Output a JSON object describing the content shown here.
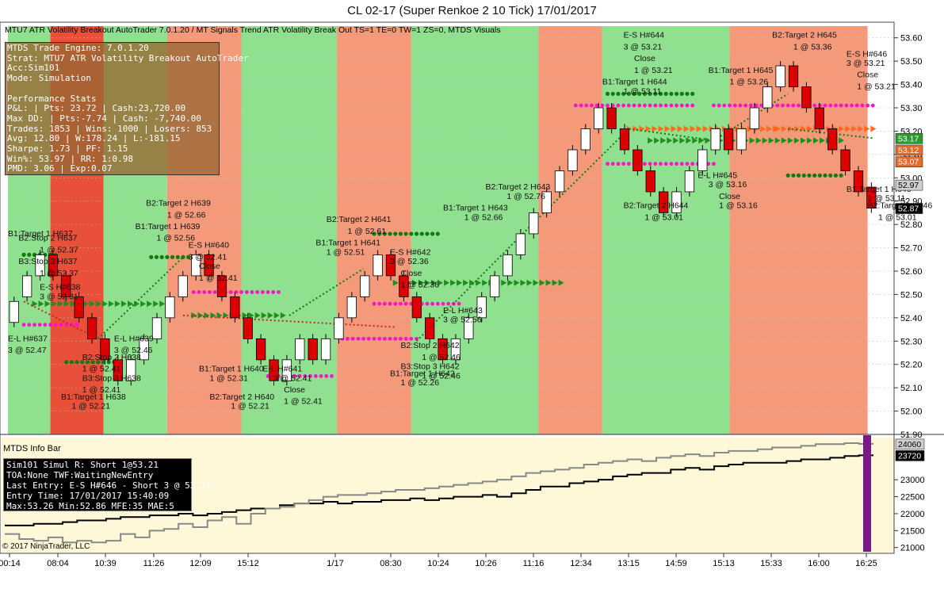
{
  "window_title": "CL 02-17 (Super Renkoe 2  10 Tick)  17/01/2017",
  "header_strip": "MTU7 ATR Volatility Breakout AutoTrader 7.0.1.20  / MT Signals Trend ATR Volatility Break Out TS=1 TE=0 TW=1 ZS=0, MTDS Visuals",
  "stats_panel": {
    "lines": [
      "MTDS Trade Engine: 7.0.1.20",
      "Strat:  MTU7 ATR Volatility Breakout AutoTrader",
      "Acc:Sim101",
      "Mode: Simulation",
      "",
      "Performance Stats",
      "P&L: | Pts: 23.72 | Cash:23,720.00",
      "Max DD: | Pts:-7.74 | Cash: -7,740.00",
      "Trades: 1853 | Wins: 1000 | Losers: 853",
      "Avg: 12.80 | W:178.24 | L:-181.15",
      "Sharpe: 1.73 | PF: 1.15",
      "Win%: 53.97 | RR: 1:0.98",
      "PMD: 3.06 | Exp:0.07"
    ]
  },
  "info_bar": {
    "title": "MTDS Info Bar",
    "lines": [
      "Sim101 Simul  R: Short 1@53.21",
      "TOA:None TWF:WaitingNewEntry",
      "Last Entry: E-S H#646 - Short 3 @ 53.21",
      "Entry Time: 17/01/2017 15:40:09",
      "Max:53.26 Min:52.86 MFE:35 MAE:5"
    ]
  },
  "copyright": "© 2017 NinjaTrader, LLC",
  "colors": {
    "long_zone": "#8fe08f",
    "short_zone": "#f49a7a",
    "strong_short_zone": "#e8503a",
    "bull_candle": "#ffffff",
    "bear_candle": "#dd0000",
    "green_dots": "#127a12",
    "magenta_dots": "#ff11cc",
    "info_bg": "#fff8d8",
    "purple_bar": "#7a1a8a"
  },
  "chart_data": [
    {
      "type": "candlestick",
      "title": "CL 02-17 (Super Renkoe 2  10 Tick)  17/01/2017",
      "ylim": [
        51.9,
        53.65
      ],
      "y_ticks": [
        "53.60",
        "53.50",
        "53.40",
        "53.30",
        "53.20",
        "53.10",
        "53.00",
        "52.90",
        "52.80",
        "52.70",
        "52.60",
        "52.50",
        "52.40",
        "52.30",
        "52.20",
        "52.10",
        "52.00",
        "51.90"
      ],
      "x_tick_labels": [
        "00:14",
        "08:04",
        "10:39",
        "11:26",
        "12:09",
        "15:12",
        "1/17",
        "08:30",
        "10:24",
        "10:26",
        "11:16",
        "12:34",
        "13:15",
        "14:59",
        "15:13",
        "15:33",
        "16:00",
        "16:25"
      ],
      "price_labels": [
        {
          "text": "53.17",
          "color": "#2e9a2e"
        },
        {
          "text": "53.12",
          "color": "#e86a2a"
        },
        {
          "text": "53.07",
          "color": "#e86a2a"
        },
        {
          "text": "52.97",
          "color": "#cfcfcf"
        },
        {
          "text": "52.87",
          "color": "#000000"
        }
      ],
      "zones": [
        {
          "from": 0,
          "to": 4,
          "kind": "long"
        },
        {
          "from": 4,
          "to": 9,
          "kind": "strong_short"
        },
        {
          "from": 9,
          "to": 15,
          "kind": "long"
        },
        {
          "from": 15,
          "to": 22,
          "kind": "short"
        },
        {
          "from": 22,
          "to": 31,
          "kind": "long"
        },
        {
          "from": 31,
          "to": 38,
          "kind": "short"
        },
        {
          "from": 38,
          "to": 50,
          "kind": "long"
        },
        {
          "from": 50,
          "to": 56,
          "kind": "short"
        },
        {
          "from": 56,
          "to": 68,
          "kind": "long"
        },
        {
          "from": 68,
          "to": 81,
          "kind": "short"
        }
      ],
      "candles_close": [
        52.47,
        52.58,
        52.67,
        52.58,
        52.49,
        52.4,
        52.31,
        52.22,
        52.13,
        52.22,
        52.31,
        52.4,
        52.49,
        52.58,
        52.67,
        52.58,
        52.49,
        52.4,
        52.31,
        52.22,
        52.13,
        52.22,
        52.31,
        52.22,
        52.31,
        52.4,
        52.49,
        52.58,
        52.67,
        52.58,
        52.49,
        52.4,
        52.31,
        52.22,
        52.31,
        52.4,
        52.49,
        52.58,
        52.67,
        52.76,
        52.85,
        52.94,
        53.03,
        53.12,
        53.21,
        53.3,
        53.21,
        53.12,
        53.03,
        52.94,
        52.85,
        52.94,
        53.03,
        53.12,
        53.21,
        53.12,
        53.21,
        53.3,
        53.39,
        53.48,
        53.39,
        53.3,
        53.21,
        53.12,
        53.03,
        52.94,
        52.87
      ],
      "candles_open": [
        52.38,
        52.49,
        52.58,
        52.67,
        52.58,
        52.49,
        52.4,
        52.31,
        52.22,
        52.13,
        52.22,
        52.31,
        52.4,
        52.49,
        52.58,
        52.67,
        52.58,
        52.49,
        52.4,
        52.31,
        52.22,
        52.13,
        52.22,
        52.31,
        52.22,
        52.31,
        52.4,
        52.49,
        52.58,
        52.67,
        52.58,
        52.49,
        52.4,
        52.31,
        52.22,
        52.31,
        52.4,
        52.49,
        52.58,
        52.67,
        52.76,
        52.85,
        52.94,
        53.03,
        53.12,
        53.21,
        53.3,
        53.21,
        53.12,
        53.03,
        52.94,
        52.85,
        52.94,
        53.03,
        53.12,
        53.21,
        53.12,
        53.21,
        53.3,
        53.39,
        53.48,
        53.39,
        53.3,
        53.21,
        53.12,
        53.03,
        52.96
      ],
      "green_dot_levels": [
        {
          "from": 1,
          "to": 4,
          "y": 52.67
        },
        {
          "from": 5,
          "to": 10,
          "y": 52.21
        },
        {
          "from": 13,
          "to": 17,
          "y": 52.66
        },
        {
          "from": 34,
          "to": 40,
          "y": 52.76
        },
        {
          "from": 56,
          "to": 64,
          "y": 53.36
        },
        {
          "from": 73,
          "to": 78,
          "y": 53.01
        }
      ],
      "magenta_dot_levels": [
        {
          "from": 1,
          "to": 6,
          "y": 52.37
        },
        {
          "from": 17,
          "to": 25,
          "y": 52.51
        },
        {
          "from": 24,
          "to": 30,
          "y": 52.15
        },
        {
          "from": 31,
          "to": 38,
          "y": 52.31
        },
        {
          "from": 34,
          "to": 42,
          "y": 52.46
        },
        {
          "from": 53,
          "to": 64,
          "y": 53.31
        },
        {
          "from": 56,
          "to": 66,
          "y": 53.06
        },
        {
          "from": 66,
          "to": 81,
          "y": 53.31
        }
      ],
      "green_arrow_levels": [
        {
          "from": 2,
          "to": 14,
          "y": 52.46
        },
        {
          "from": 17,
          "to": 26,
          "y": 52.41
        },
        {
          "from": 36,
          "to": 52,
          "y": 52.55
        },
        {
          "from": 60,
          "to": 78,
          "y": 53.16
        }
      ],
      "orange_arrow_levels": [
        {
          "from": 58,
          "to": 72,
          "y": 53.21
        },
        {
          "from": 72,
          "to": 81,
          "y": 53.21
        }
      ],
      "annotations": [
        {
          "text": "B1:Target 1 H637",
          "x": 0,
          "y": 52.75
        },
        {
          "text": "B2:Stop 2 H637",
          "x": 1,
          "y": 52.73
        },
        {
          "text": "1 @ 52.37",
          "x": 3,
          "y": 52.68
        },
        {
          "text": "B3:Stop 3 H637",
          "x": 1,
          "y": 52.63
        },
        {
          "text": "1 @ 52.37",
          "x": 3,
          "y": 52.58
        },
        {
          "text": "E-S H#638",
          "x": 3,
          "y": 52.52
        },
        {
          "text": "3 @ 52.31",
          "x": 3,
          "y": 52.48
        },
        {
          "text": "E-L H#637",
          "x": 0,
          "y": 52.3
        },
        {
          "text": "3 @ 52.47",
          "x": 0,
          "y": 52.25
        },
        {
          "text": "B2:Stop 2 H638",
          "x": 7,
          "y": 52.22
        },
        {
          "text": "1 @ 52.41",
          "x": 7,
          "y": 52.17
        },
        {
          "text": "B3:Stop 3 H638",
          "x": 7,
          "y": 52.13
        },
        {
          "text": "1 @ 52.41",
          "x": 7,
          "y": 52.08
        },
        {
          "text": "B1:Target 1 H638",
          "x": 5,
          "y": 52.05
        },
        {
          "text": "1 @ 52.21",
          "x": 6,
          "y": 52.01
        },
        {
          "text": "E-L H#639",
          "x": 10,
          "y": 52.3
        },
        {
          "text": "3 @ 52.46",
          "x": 10,
          "y": 52.25
        },
        {
          "text": "B2:Target 2 H639",
          "x": 13,
          "y": 52.88
        },
        {
          "text": "1 @ 52.66",
          "x": 15,
          "y": 52.83
        },
        {
          "text": "B1:Target 1 H639",
          "x": 12,
          "y": 52.78
        },
        {
          "text": "1 @ 52.56",
          "x": 14,
          "y": 52.73
        },
        {
          "text": "E-S H#640",
          "x": 17,
          "y": 52.7
        },
        {
          "text": "3 @ 52.41",
          "x": 17,
          "y": 52.65
        },
        {
          "text": "Close",
          "x": 18,
          "y": 52.61
        },
        {
          "text": "1 @ 52.41",
          "x": 18,
          "y": 52.56
        },
        {
          "text": "B1:Target 1 H640",
          "x": 18,
          "y": 52.17
        },
        {
          "text": "1 @ 52.31",
          "x": 19,
          "y": 52.13
        },
        {
          "text": "B2:Target 2 H640",
          "x": 19,
          "y": 52.05
        },
        {
          "text": "1 @ 52.21",
          "x": 21,
          "y": 52.01
        },
        {
          "text": "E-L H#641",
          "x": 24,
          "y": 52.17
        },
        {
          "text": "3 @ 52.41",
          "x": 25,
          "y": 52.13
        },
        {
          "text": "Close",
          "x": 26,
          "y": 52.08
        },
        {
          "text": "1 @ 52.41",
          "x": 26,
          "y": 52.03
        },
        {
          "text": "B2:Target 2 H641",
          "x": 30,
          "y": 52.81
        },
        {
          "text": "1 @ 52.61",
          "x": 32,
          "y": 52.76
        },
        {
          "text": "B1:Target 1 H641",
          "x": 29,
          "y": 52.71
        },
        {
          "text": "1 @ 52.51",
          "x": 30,
          "y": 52.67
        },
        {
          "text": "E-S H#642",
          "x": 36,
          "y": 52.67
        },
        {
          "text": "3 @ 52.36",
          "x": 36,
          "y": 52.63
        },
        {
          "text": "Close",
          "x": 37,
          "y": 52.58
        },
        {
          "text": "1 @ 52.36",
          "x": 37,
          "y": 52.53
        },
        {
          "text": "B2:Stop 2 H642",
          "x": 37,
          "y": 52.27
        },
        {
          "text": "1 @ 52.46",
          "x": 39,
          "y": 52.22
        },
        {
          "text": "B3:Stop 3 H642",
          "x": 37,
          "y": 52.18
        },
        {
          "text": "1 @ 52.46",
          "x": 39,
          "y": 52.14
        },
        {
          "text": "B1:Target 1 H642",
          "x": 36,
          "y": 52.15
        },
        {
          "text": "1 @ 52.26",
          "x": 37,
          "y": 52.11
        },
        {
          "text": "E-L H#643",
          "x": 41,
          "y": 52.42
        },
        {
          "text": "3 @ 52.56",
          "x": 41,
          "y": 52.38
        },
        {
          "text": "B1:Target 1 H643",
          "x": 41,
          "y": 52.86
        },
        {
          "text": "1 @ 52.66",
          "x": 43,
          "y": 52.82
        },
        {
          "text": "B2:Target 2 H643",
          "x": 45,
          "y": 52.95
        },
        {
          "text": "1 @ 52.76",
          "x": 47,
          "y": 52.91
        },
        {
          "text": "E-S H#644",
          "x": 58,
          "y": 53.6
        },
        {
          "text": "3 @ 53.21",
          "x": 58,
          "y": 53.55
        },
        {
          "text": "Close",
          "x": 59,
          "y": 53.5
        },
        {
          "text": "1 @ 53.21",
          "x": 59,
          "y": 53.45
        },
        {
          "text": "B1:Target 1 H644",
          "x": 56,
          "y": 53.4
        },
        {
          "text": "1 @ 53.11",
          "x": 58,
          "y": 53.36
        },
        {
          "text": "B2:Target 2 H644",
          "x": 58,
          "y": 52.87
        },
        {
          "text": "1 @ 53.01",
          "x": 60,
          "y": 52.82
        },
        {
          "text": "B1:Target 1 H645",
          "x": 66,
          "y": 53.45
        },
        {
          "text": "1 @ 53.26",
          "x": 68,
          "y": 53.4
        },
        {
          "text": "E-L H#645",
          "x": 65,
          "y": 53.0
        },
        {
          "text": "3 @ 53.16",
          "x": 66,
          "y": 52.96
        },
        {
          "text": "Close",
          "x": 67,
          "y": 52.91
        },
        {
          "text": "1 @ 53.16",
          "x": 67,
          "y": 52.87
        },
        {
          "text": "B2:Target 2 H645",
          "x": 72,
          "y": 53.6
        },
        {
          "text": "1 @ 53.36",
          "x": 74,
          "y": 53.55
        },
        {
          "text": "E-S H#646",
          "x": 79,
          "y": 53.52
        },
        {
          "text": "3 @ 53.21",
          "x": 79,
          "y": 53.48
        },
        {
          "text": "Close",
          "x": 80,
          "y": 53.43
        },
        {
          "text": "1 @ 53.21",
          "x": 80,
          "y": 53.38
        },
        {
          "text": "B1:Target 1 H646",
          "x": 79,
          "y": 52.94
        },
        {
          "text": "1 @ 53.11",
          "x": 81,
          "y": 52.9
        },
        {
          "text": "B2:Target 2 H646",
          "x": 81,
          "y": 52.87
        },
        {
          "text": "1 @ 53.01",
          "x": 82,
          "y": 52.82
        }
      ]
    },
    {
      "type": "line",
      "title": "MTDS Info Bar",
      "ylim": [
        20900,
        24150
      ],
      "y_ticks": [
        "23000",
        "22500",
        "22000",
        "21500",
        "21000"
      ],
      "value_labels": [
        "24060",
        "23720"
      ],
      "series": [
        {
          "name": "",
          "color": "#000000",
          "values": [
            21650,
            21650,
            21700,
            21700,
            21750,
            21800,
            21800,
            21850,
            21900,
            21900,
            21950,
            21950,
            22000,
            21950,
            22000,
            22050,
            22100,
            22150,
            22150,
            22250,
            22300,
            22300,
            22350,
            22300,
            22350,
            22350,
            22400,
            22400,
            22450,
            22400,
            22450,
            22500,
            22500,
            22550,
            22500,
            22600,
            22700,
            22800,
            22800,
            22900,
            22950,
            23000,
            23100,
            23150,
            23200,
            23200,
            23300,
            23350,
            23300,
            23400,
            23450,
            23500,
            23500,
            23500,
            23550,
            23600,
            23600,
            23650,
            23700,
            23720
          ]
        },
        {
          "name": "",
          "color": "#888888",
          "values": [
            21400,
            21250,
            21200,
            21300,
            21150,
            21200,
            21150,
            21200,
            21400,
            21300,
            21500,
            21550,
            21700,
            21600,
            21800,
            21900,
            21700,
            22000,
            22150,
            22200,
            22300,
            22400,
            22500,
            22550,
            22550,
            22600,
            22650,
            22700,
            22700,
            22750,
            22800,
            22850,
            22900,
            22950,
            23000,
            23100,
            23200,
            23250,
            23300,
            23350,
            23450,
            23500,
            23550,
            23600,
            23550,
            23650,
            23700,
            23750,
            23700,
            23800,
            23850,
            23850,
            23900,
            23950,
            23950,
            24000,
            24050,
            24050,
            24080,
            24060
          ]
        }
      ]
    }
  ]
}
